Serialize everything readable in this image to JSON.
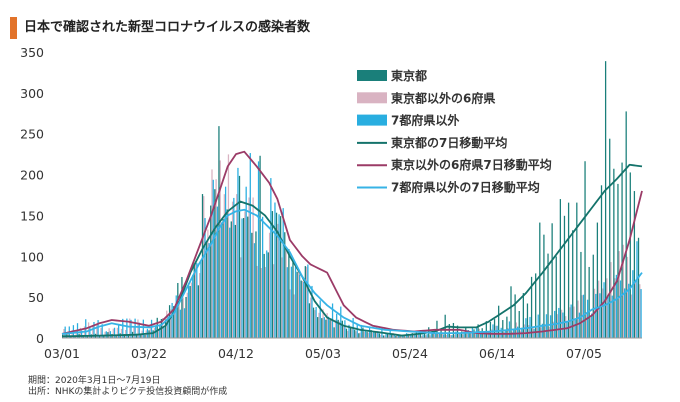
{
  "title": "日本で確認された新型コロナウイルスの感染者数",
  "notes": {
    "period": "期間：2020年3月1日～7月19日",
    "source": "出所：NHKの集計よりピクテ投信投資顧問が作成"
  },
  "colors": {
    "tokyo_bar": "#1a7f7a",
    "six_bar": "#d9b3c2",
    "seven_bar": "#29aee0",
    "tokyo_line": "#14736b",
    "six_line": "#9b3b67",
    "seven_line": "#37b3e6"
  },
  "chart_data": {
    "type": "bar",
    "title": "日本で確認された新型コロナウイルスの感染者数",
    "x_start": "03/01",
    "days": 141,
    "xticks": [
      "03/01",
      "03/22",
      "04/12",
      "05/03",
      "05/24",
      "06/14",
      "07/05"
    ],
    "yticks": [
      "0",
      "50",
      "100",
      "150",
      "200",
      "250",
      "300",
      "350"
    ],
    "ylim": [
      0,
      350
    ],
    "grid": false,
    "legend_position": "top-right",
    "series": [
      {
        "name": "東京都",
        "kind": "bar",
        "key_points": [
          [
            0,
            3
          ],
          [
            10,
            5
          ],
          [
            21,
            7
          ],
          [
            24,
            25
          ],
          [
            27,
            45
          ],
          [
            30,
            80
          ],
          [
            33,
            110
          ],
          [
            36,
            145
          ],
          [
            38,
            190
          ],
          [
            40,
            175
          ],
          [
            41,
            150
          ],
          [
            45,
            165
          ],
          [
            48,
            190
          ],
          [
            50,
            140
          ],
          [
            52,
            120
          ],
          [
            55,
            85
          ],
          [
            58,
            70
          ],
          [
            61,
            45
          ],
          [
            64,
            20
          ],
          [
            68,
            15
          ],
          [
            72,
            10
          ],
          [
            78,
            5
          ],
          [
            82,
            3
          ],
          [
            86,
            6
          ],
          [
            90,
            12
          ],
          [
            93,
            20
          ],
          [
            96,
            12
          ],
          [
            100,
            14
          ],
          [
            103,
            25
          ],
          [
            107,
            35
          ],
          [
            110,
            50
          ],
          [
            113,
            70
          ],
          [
            116,
            100
          ],
          [
            119,
            120
          ],
          [
            122,
            130
          ],
          [
            125,
            200
          ],
          [
            128,
            150
          ],
          [
            131,
            240
          ],
          [
            134,
            230
          ],
          [
            137,
            210
          ],
          [
            140,
            200
          ]
        ]
      },
      {
        "name": "東京都以外の6府県",
        "kind": "bar",
        "key_points": [
          [
            0,
            8
          ],
          [
            6,
            15
          ],
          [
            11,
            12
          ],
          [
            16,
            18
          ],
          [
            21,
            15
          ],
          [
            24,
            20
          ],
          [
            27,
            35
          ],
          [
            30,
            70
          ],
          [
            33,
            110
          ],
          [
            35,
            150
          ],
          [
            37,
            180
          ],
          [
            38,
            200
          ],
          [
            40,
            170
          ],
          [
            42,
            160
          ],
          [
            44,
            150
          ],
          [
            47,
            140
          ],
          [
            50,
            120
          ],
          [
            52,
            110
          ],
          [
            55,
            95
          ],
          [
            58,
            75
          ],
          [
            61,
            45
          ],
          [
            64,
            22
          ],
          [
            68,
            12
          ],
          [
            72,
            8
          ],
          [
            78,
            5
          ],
          [
            84,
            3
          ],
          [
            90,
            4
          ],
          [
            96,
            5
          ],
          [
            100,
            8
          ],
          [
            104,
            10
          ],
          [
            108,
            12
          ],
          [
            112,
            15
          ],
          [
            116,
            20
          ],
          [
            119,
            25
          ],
          [
            122,
            30
          ],
          [
            125,
            35
          ],
          [
            128,
            40
          ],
          [
            131,
            60
          ],
          [
            134,
            70
          ],
          [
            137,
            90
          ],
          [
            140,
            100
          ]
        ]
      },
      {
        "name": "7都府県以外",
        "kind": "bar",
        "key_points": [
          [
            0,
            10
          ],
          [
            6,
            18
          ],
          [
            11,
            14
          ],
          [
            16,
            20
          ],
          [
            21,
            18
          ],
          [
            24,
            20
          ],
          [
            27,
            40
          ],
          [
            30,
            70
          ],
          [
            33,
            110
          ],
          [
            35,
            130
          ],
          [
            37,
            150
          ],
          [
            38,
            175
          ],
          [
            40,
            160
          ],
          [
            42,
            160
          ],
          [
            44,
            160
          ],
          [
            47,
            150
          ],
          [
            50,
            140
          ],
          [
            52,
            120
          ],
          [
            55,
            100
          ],
          [
            58,
            80
          ],
          [
            61,
            55
          ],
          [
            64,
            35
          ],
          [
            68,
            25
          ],
          [
            72,
            15
          ],
          [
            78,
            8
          ],
          [
            84,
            5
          ],
          [
            90,
            4
          ],
          [
            96,
            6
          ],
          [
            100,
            10
          ],
          [
            104,
            12
          ],
          [
            108,
            15
          ],
          [
            112,
            18
          ],
          [
            116,
            22
          ],
          [
            119,
            25
          ],
          [
            122,
            30
          ],
          [
            125,
            35
          ],
          [
            128,
            45
          ],
          [
            131,
            55
          ],
          [
            134,
            65
          ],
          [
            137,
            75
          ],
          [
            140,
            85
          ]
        ]
      },
      {
        "name": "東京都の7日移動平均",
        "kind": "line",
        "key_points": [
          [
            0,
            2
          ],
          [
            10,
            3
          ],
          [
            18,
            4
          ],
          [
            22,
            6
          ],
          [
            25,
            15
          ],
          [
            28,
            40
          ],
          [
            31,
            80
          ],
          [
            34,
            110
          ],
          [
            37,
            135
          ],
          [
            40,
            155
          ],
          [
            43,
            167
          ],
          [
            46,
            162
          ],
          [
            49,
            150
          ],
          [
            52,
            130
          ],
          [
            55,
            100
          ],
          [
            58,
            75
          ],
          [
            61,
            45
          ],
          [
            64,
            25
          ],
          [
            68,
            15
          ],
          [
            72,
            10
          ],
          [
            78,
            6
          ],
          [
            82,
            3
          ],
          [
            86,
            5
          ],
          [
            90,
            8
          ],
          [
            93,
            14
          ],
          [
            96,
            13
          ],
          [
            100,
            13
          ],
          [
            103,
            20
          ],
          [
            106,
            30
          ],
          [
            109,
            40
          ],
          [
            112,
            55
          ],
          [
            116,
            80
          ],
          [
            119,
            100
          ],
          [
            122,
            120
          ],
          [
            125,
            140
          ],
          [
            128,
            160
          ],
          [
            131,
            180
          ],
          [
            134,
            195
          ],
          [
            137,
            212
          ],
          [
            140,
            210
          ]
        ]
      },
      {
        "name": "東京以外の6府県7日移動平均",
        "kind": "line",
        "key_points": [
          [
            0,
            5
          ],
          [
            6,
            12
          ],
          [
            9,
            18
          ],
          [
            12,
            22
          ],
          [
            16,
            20
          ],
          [
            21,
            15
          ],
          [
            24,
            20
          ],
          [
            27,
            35
          ],
          [
            30,
            70
          ],
          [
            33,
            110
          ],
          [
            36,
            150
          ],
          [
            38,
            180
          ],
          [
            40,
            210
          ],
          [
            42,
            225
          ],
          [
            44,
            228
          ],
          [
            47,
            210
          ],
          [
            50,
            190
          ],
          [
            52,
            170
          ],
          [
            55,
            120
          ],
          [
            58,
            100
          ],
          [
            60,
            90
          ],
          [
            62,
            85
          ],
          [
            64,
            80
          ],
          [
            66,
            60
          ],
          [
            68,
            40
          ],
          [
            71,
            25
          ],
          [
            75,
            15
          ],
          [
            80,
            10
          ],
          [
            85,
            8
          ],
          [
            90,
            10
          ],
          [
            96,
            10
          ],
          [
            100,
            6
          ],
          [
            104,
            5
          ],
          [
            108,
            5
          ],
          [
            112,
            6
          ],
          [
            116,
            8
          ],
          [
            119,
            10
          ],
          [
            122,
            12
          ],
          [
            125,
            18
          ],
          [
            128,
            28
          ],
          [
            131,
            45
          ],
          [
            134,
            70
          ],
          [
            137,
            120
          ],
          [
            140,
            180
          ]
        ]
      },
      {
        "name": "7都府県以外の7日移動平均",
        "kind": "line",
        "key_points": [
          [
            0,
            5
          ],
          [
            6,
            8
          ],
          [
            9,
            14
          ],
          [
            12,
            18
          ],
          [
            16,
            14
          ],
          [
            21,
            13
          ],
          [
            24,
            16
          ],
          [
            27,
            30
          ],
          [
            30,
            60
          ],
          [
            33,
            90
          ],
          [
            36,
            115
          ],
          [
            38,
            135
          ],
          [
            40,
            150
          ],
          [
            42,
            155
          ],
          [
            44,
            157
          ],
          [
            47,
            150
          ],
          [
            50,
            135
          ],
          [
            52,
            125
          ],
          [
            55,
            105
          ],
          [
            58,
            75
          ],
          [
            61,
            55
          ],
          [
            64,
            40
          ],
          [
            68,
            25
          ],
          [
            72,
            15
          ],
          [
            78,
            10
          ],
          [
            84,
            8
          ],
          [
            90,
            6
          ],
          [
            96,
            6
          ],
          [
            100,
            7
          ],
          [
            104,
            8
          ],
          [
            108,
            10
          ],
          [
            112,
            12
          ],
          [
            116,
            15
          ],
          [
            119,
            17
          ],
          [
            122,
            20
          ],
          [
            125,
            25
          ],
          [
            128,
            35
          ],
          [
            131,
            40
          ],
          [
            134,
            48
          ],
          [
            137,
            60
          ],
          [
            140,
            80
          ]
        ]
      }
    ]
  }
}
